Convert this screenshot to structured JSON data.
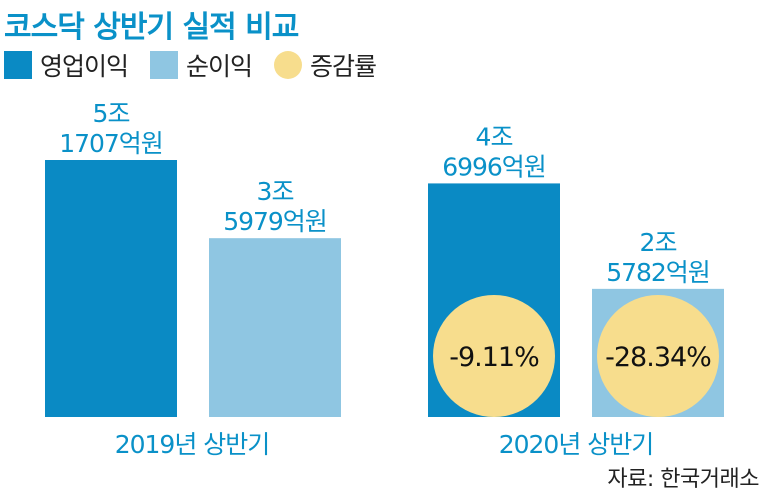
{
  "title": "코스닥 상반기 실적 비교",
  "legend": [
    {
      "label": "영업이익",
      "color": "#0a8ac4",
      "shape": "square"
    },
    {
      "label": "순이익",
      "color": "#8fc6e2",
      "shape": "square"
    },
    {
      "label": "증감률",
      "color": "#f7dd8d",
      "shape": "circle"
    }
  ],
  "source": "자료: 한국거래소",
  "chart_data": {
    "type": "bar",
    "title": "코스닥 상반기 실적 비교",
    "categories": [
      "2019년 상반기",
      "2020년 상반기"
    ],
    "series": [
      {
        "name": "영업이익",
        "values": [
          51707,
          46996
        ],
        "labels": [
          [
            "5조",
            "1707억원"
          ],
          [
            "4조",
            "6996억원"
          ]
        ],
        "change_labels": [
          "",
          "-9.11%"
        ]
      },
      {
        "name": "순이익",
        "values": [
          35979,
          25782
        ],
        "labels": [
          [
            "3조",
            "5979억원"
          ],
          [
            "2조",
            "5782억원"
          ]
        ],
        "change_labels": [
          "",
          "-28.34%"
        ]
      }
    ],
    "unit": "억원",
    "ylim": [
      0,
      51707
    ],
    "grid": false,
    "legend_position": "top-left"
  }
}
